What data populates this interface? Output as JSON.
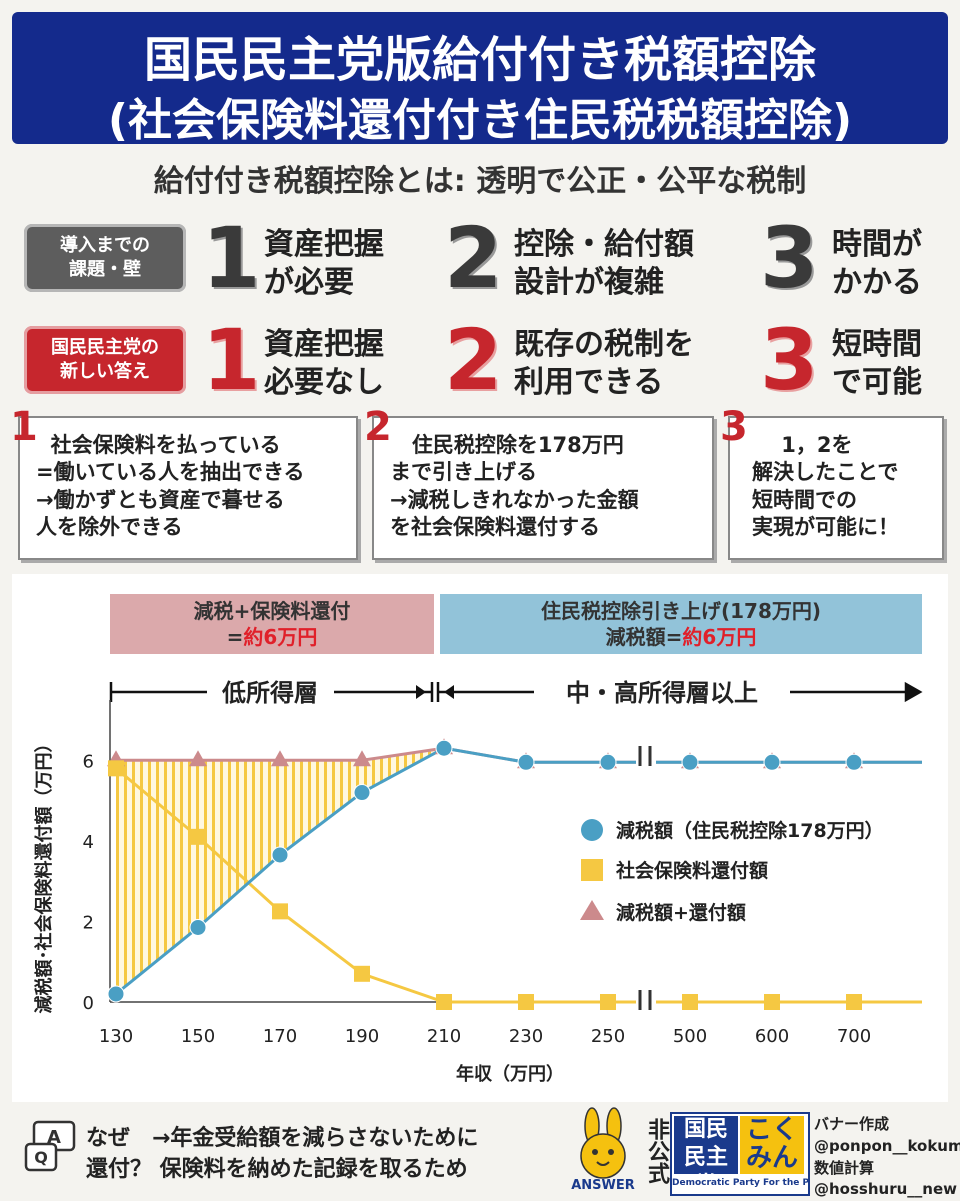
{
  "header": {
    "line1": "国民民主党版給付付き税額控除",
    "line2": "(社会保険料還付付き住民税税額控除)"
  },
  "subtitle": "給付付き税額控除とは: 透明で公正・公平な税制",
  "rows": {
    "problems": {
      "badge": [
        "導入までの",
        "課題・壁"
      ],
      "items": [
        {
          "num": "1",
          "text": [
            "資産把握",
            "が必要"
          ]
        },
        {
          "num": "2",
          "text": [
            "控除・給付額",
            "設計が複雑"
          ]
        },
        {
          "num": "3",
          "text": [
            "時間が",
            "かかる"
          ]
        }
      ]
    },
    "answers": {
      "badge": [
        "国民民主党の",
        "新しい答え"
      ],
      "items": [
        {
          "num": "1",
          "text": [
            "資産把握",
            "必要なし"
          ]
        },
        {
          "num": "2",
          "text": [
            "既存の税制を",
            "利用できる"
          ]
        },
        {
          "num": "3",
          "text": [
            "短時間",
            "で可能"
          ]
        }
      ]
    }
  },
  "boxes": [
    {
      "num": "1",
      "text": "  社会保険料を払っている\n=働いている人を抽出できる\n→働かずとも資産で暮せる\n人を除外できる"
    },
    {
      "num": "2",
      "text": "   住民税控除を178万円\nまで引き上げる\n→減税しきれなかった金額\nを社会保険料還付する"
    },
    {
      "num": "3",
      "text": "    1，2を\n解決したことで\n短時間での\n実現が可能に！"
    }
  ],
  "chart_data": {
    "type": "line",
    "bands": [
      {
        "line1": "減税+保険料還付",
        "line2_prefix": "=",
        "line2_value": "約6万円",
        "color": "#dba9ab"
      },
      {
        "line1": "住民税控除引き上げ(178万円)",
        "line2_prefix": "減税額=",
        "line2_value": "約6万円",
        "color": "#92c3d9"
      }
    ],
    "segments": {
      "left": "低所得層",
      "right": "中・高所得層以上"
    },
    "categories": [
      "130",
      "150",
      "170",
      "190",
      "210",
      "230",
      "250",
      "500",
      "600",
      "700"
    ],
    "series": [
      {
        "name": "減税額（住民税控除178万円）",
        "marker": "circle",
        "color": "#4a9fc4",
        "values": [
          0.2,
          1.85,
          3.65,
          5.2,
          6.3,
          5.95,
          5.95,
          5.95,
          5.95,
          5.95
        ]
      },
      {
        "name": "社会保険料還付額",
        "marker": "square",
        "color": "#f5c842",
        "values": [
          5.8,
          4.1,
          2.25,
          0.7,
          0,
          0,
          0,
          0,
          0,
          0
        ]
      },
      {
        "name": "減税額+還付額",
        "marker": "triangle",
        "color": "#cc8a8c",
        "values": [
          6,
          6,
          6,
          6,
          6.3,
          5.95,
          5.95,
          5.95,
          5.95,
          5.95
        ]
      }
    ],
    "ylabel": "減税額･社会保険料還付額（万円）",
    "xlabel": "年収（万円）",
    "ylim": [
      0,
      7
    ],
    "yticks": [
      0,
      2,
      4,
      6
    ],
    "legend_position": "right-middle"
  },
  "footer": {
    "qa_text": [
      "なぜ　→年金受給額を減らさないために",
      "還付？ 保険料を納めた記録を取るため"
    ],
    "answer_label": "ANSWER",
    "unofficial": "非公式",
    "logo": {
      "left": "国民民主党",
      "right": "こくみん",
      "tagline": "Democratic Party For the People"
    },
    "credits": [
      "バナー作成",
      "@ponpon__kokumin",
      "数値計算",
      "@hosshuru__new"
    ]
  }
}
